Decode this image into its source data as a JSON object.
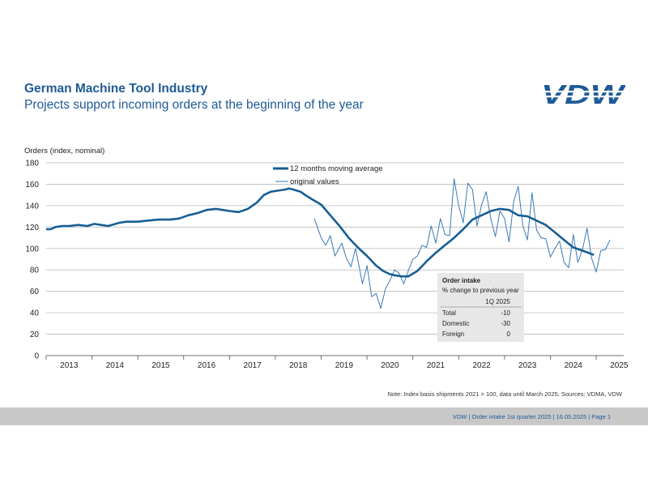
{
  "header": {
    "title": "German Machine Tool Industry",
    "subtitle": "Projects support incoming orders at the beginning of the year",
    "logo_text": "VDW"
  },
  "colors": {
    "brand": "#1f5a96",
    "line": "#175e93",
    "thin": "#3a7ab8",
    "grid": "#b9b9b9",
    "footer": "#c8c8c8",
    "box": "#e7e7e7"
  },
  "chart_data": {
    "type": "line",
    "ylabel": "Orders (index, nominal)",
    "ylim": [
      0,
      180
    ],
    "yticks": [
      0,
      20,
      40,
      60,
      80,
      100,
      120,
      140,
      160,
      180
    ],
    "xlabels": [
      "2013",
      "2014",
      "2015",
      "2016",
      "2017",
      "2018",
      "2019",
      "2020",
      "2021",
      "2022",
      "2023",
      "2024",
      "2025"
    ],
    "xlim": [
      2013,
      2025.6
    ],
    "legend": [
      "12 months moving average",
      "original values"
    ],
    "series": [
      {
        "name": "12 months moving average",
        "x": [
          2013.0,
          2013.1,
          2013.2,
          2013.35,
          2013.5,
          2013.7,
          2013.9,
          2014.05,
          2014.2,
          2014.35,
          2014.6,
          2014.75,
          2015.0,
          2015.2,
          2015.45,
          2015.7,
          2015.9,
          2016.1,
          2016.3,
          2016.5,
          2016.7,
          2016.85,
          2017.0,
          2017.2,
          2017.4,
          2017.6,
          2017.75,
          2017.9,
          2018.05,
          2018.2,
          2018.3,
          2018.4,
          2018.55,
          2018.65,
          2018.8,
          2019.0,
          2019.2,
          2019.4,
          2019.6,
          2019.8,
          2020.0,
          2020.2,
          2020.35,
          2020.5,
          2020.6,
          2020.75,
          2020.9,
          2021.1,
          2021.3,
          2021.5,
          2021.7,
          2021.9,
          2022.1,
          2022.3,
          2022.5,
          2022.7,
          2022.9,
          2023.1,
          2023.3,
          2023.5,
          2023.7,
          2023.9,
          2024.1,
          2024.3,
          2024.5,
          2024.7,
          2024.95
        ],
        "values": [
          118,
          118,
          120,
          121,
          121,
          122,
          121,
          123,
          122,
          121,
          124,
          125,
          125,
          126,
          127,
          127,
          128,
          131,
          133,
          136,
          137,
          136,
          135,
          134,
          137,
          143,
          150,
          153,
          154,
          155,
          156,
          155,
          153,
          150,
          146,
          141,
          131,
          121,
          110,
          101,
          93,
          84,
          79,
          76,
          75,
          74,
          74,
          79,
          88,
          96,
          103,
          110,
          118,
          127,
          131,
          135,
          137,
          136,
          131,
          130,
          126,
          122,
          115,
          108,
          101,
          98,
          94
        ]
      },
      {
        "name": "original values",
        "x": [
          2018.85,
          2019.0,
          2019.1,
          2019.2,
          2019.3,
          2019.45,
          2019.55,
          2019.65,
          2019.75,
          2019.9,
          2020.0,
          2020.1,
          2020.2,
          2020.3,
          2020.4,
          2020.5,
          2020.6,
          2020.7,
          2020.8,
          2020.9,
          2021.0,
          2021.1,
          2021.2,
          2021.3,
          2021.4,
          2021.5,
          2021.6,
          2021.7,
          2021.8,
          2021.9,
          2022.0,
          2022.1,
          2022.2,
          2022.3,
          2022.4,
          2022.5,
          2022.6,
          2022.7,
          2022.8,
          2022.9,
          2023.0,
          2023.1,
          2023.2,
          2023.3,
          2023.4,
          2023.5,
          2023.6,
          2023.7,
          2023.8,
          2023.9,
          2024.0,
          2024.1,
          2024.2,
          2024.3,
          2024.4,
          2024.5,
          2024.6,
          2024.7,
          2024.8,
          2024.9,
          2025.0,
          2025.1,
          2025.2,
          2025.3
        ],
        "values": [
          128,
          110,
          103,
          112,
          93,
          105,
          91,
          83,
          100,
          67,
          84,
          55,
          58,
          44,
          62,
          70,
          80,
          77,
          67,
          79,
          90,
          93,
          103,
          101,
          121,
          105,
          128,
          113,
          112,
          165,
          140,
          124,
          161,
          155,
          121,
          141,
          153,
          128,
          111,
          135,
          128,
          106,
          144,
          158,
          121,
          108,
          152,
          117,
          110,
          109,
          92,
          100,
          107,
          87,
          82,
          113,
          87,
          99,
          119,
          91,
          78,
          98,
          99,
          108
        ]
      }
    ],
    "inset": {
      "title": "Order intake",
      "subtitle": "% change to previous year",
      "column": "1Q 2025",
      "rows": [
        {
          "label": "Total",
          "value": "-10"
        },
        {
          "label": "Domestic",
          "value": "-30"
        },
        {
          "label": "Foreign",
          "value": "0"
        }
      ]
    }
  },
  "note": "Note: Index basis shipments 2021 = 100, data until March 2025, Sources: VDMA, VDW",
  "footer": "VDW  |  Order intake 1st quarter 2025  |    16.05.2025     |  Page 1"
}
